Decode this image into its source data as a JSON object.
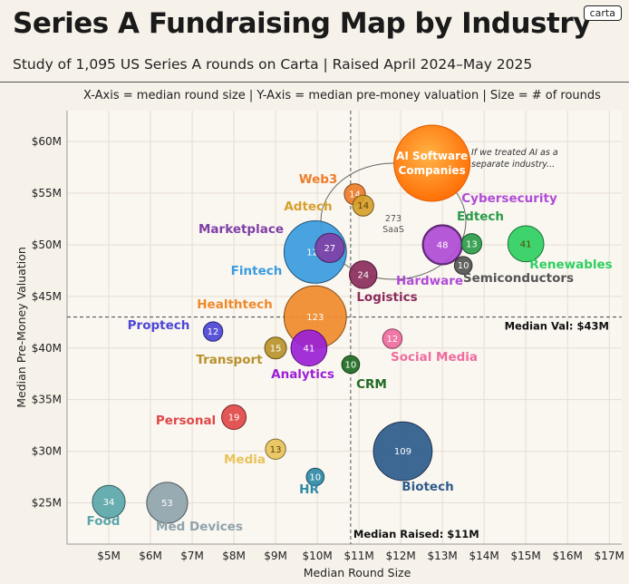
{
  "header": {
    "title": "Series A Fundraising Map by Industry",
    "subtitle": "Study of 1,095 US Series A rounds on Carta | Raised April 2024–May 2025",
    "logo": "carta",
    "axis_note": "X-Axis = median round size  |  Y-Axis = median pre-money valuation  |  Size = # of rounds"
  },
  "chart_data": {
    "type": "scatter",
    "xlabel": "Median Round Size",
    "ylabel": "Median Pre-Money Valuation",
    "xlim": [
      4,
      17.3
    ],
    "ylim": [
      21,
      63
    ],
    "x_ticks": [
      5,
      6,
      7,
      8,
      9,
      10,
      11,
      12,
      13,
      14,
      15,
      16,
      17
    ],
    "x_tick_labels": [
      "$5M",
      "$6M",
      "$7M",
      "$8M",
      "$9M",
      "$10M",
      "$11M",
      "$12M",
      "$13M",
      "$14M",
      "$15M",
      "$16M",
      "$17M"
    ],
    "y_ticks": [
      25,
      30,
      35,
      40,
      45,
      50,
      55,
      60
    ],
    "y_tick_labels": [
      "$25M",
      "$30M",
      "$35M",
      "$40M",
      "$45M",
      "$50M",
      "$55M",
      "$60M"
    ],
    "grid": true,
    "reference_lines": {
      "median_val": {
        "value": 43,
        "label": "Median Val: $43M"
      },
      "median_raised": {
        "value": 10.8,
        "label": "Median Raised: $11M"
      }
    },
    "points": [
      {
        "industry": "Food",
        "x": 5.0,
        "y": 25.1,
        "count": 34,
        "color": "#5ba6aa"
      },
      {
        "industry": "Med Devices",
        "x": 6.4,
        "y": 25.0,
        "count": 53,
        "color": "#8fa3ad"
      },
      {
        "industry": "HR",
        "x": 9.95,
        "y": 27.5,
        "count": 10,
        "color": "#2f8aa6"
      },
      {
        "industry": "Media",
        "x": 9.0,
        "y": 30.2,
        "count": 13,
        "color": "#e8c35b"
      },
      {
        "industry": "Personal",
        "x": 8.0,
        "y": 33.3,
        "count": 19,
        "color": "#e04848"
      },
      {
        "industry": "Biotech",
        "x": 12.05,
        "y": 30.0,
        "count": 109,
        "color": "#2e5b8c"
      },
      {
        "industry": "CRM",
        "x": 10.8,
        "y": 38.4,
        "count": 10,
        "color": "#1e6b22"
      },
      {
        "industry": "Social Media",
        "x": 11.8,
        "y": 40.9,
        "count": 12,
        "color": "#ee6c9f"
      },
      {
        "industry": "Proptech",
        "x": 7.5,
        "y": 41.6,
        "count": 12,
        "color": "#4c47d6"
      },
      {
        "industry": "Transport",
        "x": 9.0,
        "y": 40.0,
        "count": 15,
        "color": "#b8922b"
      },
      {
        "industry": "Analytics",
        "x": 9.8,
        "y": 40.0,
        "count": 41,
        "color": "#9b1fd6"
      },
      {
        "industry": "Healthtech",
        "x": 9.95,
        "y": 43.0,
        "count": 123,
        "color": "#ef8a2b"
      },
      {
        "industry": "Fintech",
        "x": 9.95,
        "y": 49.3,
        "count": 123,
        "color": "#3a9be0"
      },
      {
        "industry": "Marketplace",
        "x": 10.3,
        "y": 49.7,
        "count": 27,
        "color": "#7f3fa6"
      },
      {
        "industry": "Logistics",
        "x": 11.1,
        "y": 47.1,
        "count": 24,
        "color": "#8b2c5c"
      },
      {
        "industry": "Web3",
        "x": 10.9,
        "y": 54.9,
        "count": 14,
        "color": "#ee7d2a"
      },
      {
        "industry": "Adtech",
        "x": 11.1,
        "y": 53.8,
        "count": 14,
        "color": "#d6a02b"
      },
      {
        "industry": "Hardware",
        "x": 13.0,
        "y": 50.0,
        "count": 48,
        "color": "#b04bd6"
      },
      {
        "industry": "Edtech",
        "x": 13.7,
        "y": 50.1,
        "count": 13,
        "color": "#2b9b4a"
      },
      {
        "industry": "Semiconductors",
        "x": 13.5,
        "y": 48.0,
        "count": 10,
        "color": "#555555"
      },
      {
        "industry": "Renewables",
        "x": 15.0,
        "y": 50.1,
        "count": 41,
        "color": "#2fcf62"
      }
    ],
    "extra_labels": [
      {
        "text": "Cybersecurity",
        "color": "#b04bd6"
      }
    ],
    "ai_bubble": {
      "label_line1": "AI Software",
      "label_line2": "Companies",
      "x": 12.75,
      "y": 57.9,
      "saas_count": "273",
      "saas_label": "SaaS",
      "annotation_line1": "If we treated AI as a",
      "annotation_line2": "separate industry..."
    }
  }
}
